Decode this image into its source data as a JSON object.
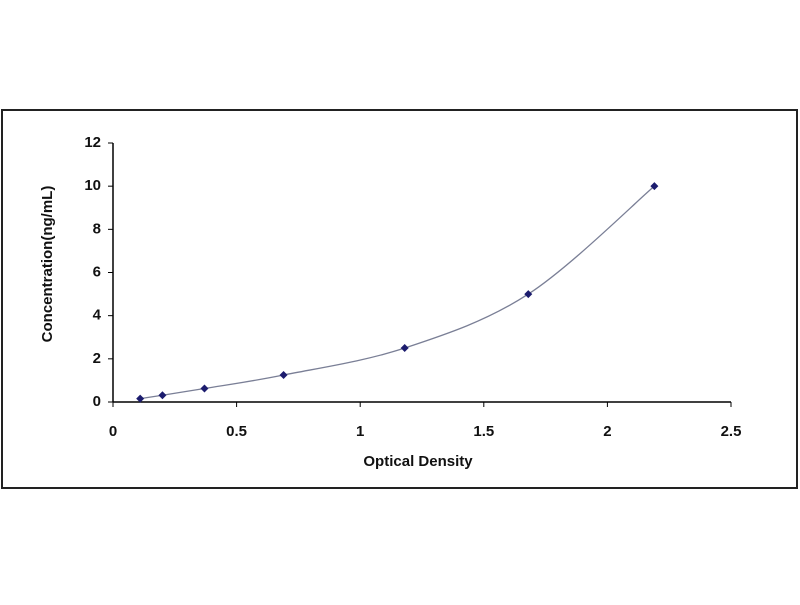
{
  "chart_data": {
    "type": "scatter",
    "x_label": "Optical Density",
    "y_label": "Concentration(ng/mL)",
    "x": [
      0.11,
      0.2,
      0.37,
      0.69,
      1.18,
      1.68,
      2.19
    ],
    "values": [
      0.156,
      0.312,
      0.625,
      1.25,
      2.5,
      5,
      10
    ],
    "color": "#1c1c6e",
    "curve_color": "#7a7f96",
    "curve": true,
    "xlim": [
      0,
      2.5
    ],
    "xticks": [
      0,
      0.5,
      1,
      1.5,
      2,
      2.5
    ],
    "ylim": [
      0,
      12
    ],
    "yticks": [
      0,
      2,
      4,
      6,
      8,
      10,
      12
    ],
    "grid": false
  }
}
